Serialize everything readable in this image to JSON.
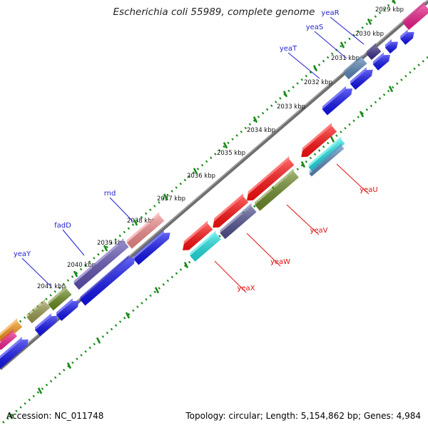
{
  "title": "Escherichia coli 55989, complete genome",
  "footer": {
    "accession": "Accession: NC_011748",
    "summary": "Topology: circular; Length: 5,154,862 bp; Genes: 4,984"
  },
  "colors": {
    "backbone": "#6e6e6e",
    "ruler": "#1a8a1a",
    "label_forward": "#1f1fd0",
    "label_reverse": "#e01010",
    "leader": "#1f1fd0",
    "leader_reverse": "#e01010",
    "cds": "#1010ee"
  },
  "ticks": [
    {
      "label": "2029 kbp"
    },
    {
      "label": "2030 kbp"
    },
    {
      "label": "2031 kbp"
    },
    {
      "label": "2032 kbp"
    },
    {
      "label": "2033 kbp"
    },
    {
      "label": "2034 kbp"
    },
    {
      "label": "2035 kbp"
    },
    {
      "label": "2036 kbp"
    },
    {
      "label": "2037 kbp"
    },
    {
      "label": "2038 kbp"
    },
    {
      "label": "2039 kbp"
    },
    {
      "label": "2040 kbp"
    },
    {
      "label": "2041 kbp"
    }
  ],
  "genes_forward": [
    {
      "name": "yeaR",
      "color": "#3a2e88"
    },
    {
      "name": "yeaS",
      "color": "#5a86b8"
    },
    {
      "name": "yeaT",
      "color": "#6c8fc0"
    },
    {
      "name": "rnd",
      "color": "#f08a8a"
    },
    {
      "name": "fadD",
      "color": "#6050b0"
    },
    {
      "name": "yeaY",
      "color": "#6a8a20"
    }
  ],
  "genes_reverse": [
    {
      "name": "yeaU",
      "color": "#ff1010"
    },
    {
      "name": "yeaV",
      "color": "#6e8a28"
    },
    {
      "name": "yeaW",
      "color": "#505090"
    },
    {
      "name": "yeaX",
      "color": "#1ee0e0"
    }
  ],
  "extra_colors": {
    "magenta": "#ee1e8a",
    "orange": "#f09010",
    "olive": "#9a9a50",
    "pink": "#f02090"
  }
}
